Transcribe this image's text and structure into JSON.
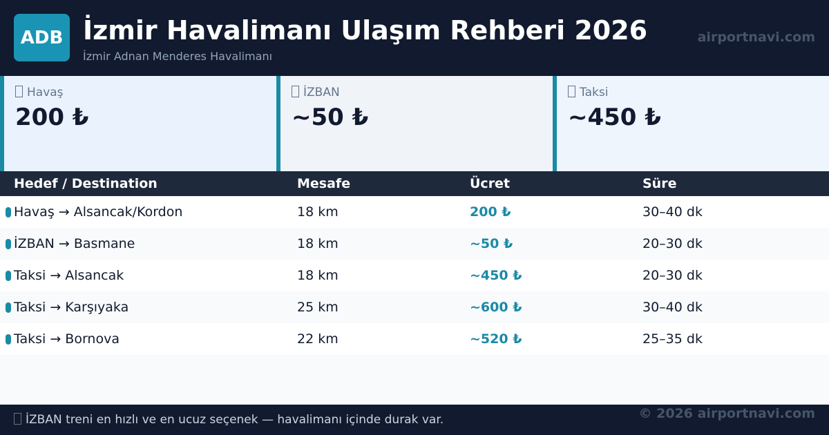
{
  "header": {
    "logo": "ADB",
    "title": "İzmir Havalimanı Ulaşım Rehberi 2026",
    "subtitle": "İzmir Adnan Menderes Havalimanı",
    "site": "airportnavi.com"
  },
  "cards": [
    {
      "label": "Havaş",
      "value": "200 ₺"
    },
    {
      "label": "İZBAN",
      "value": "~50 ₺"
    },
    {
      "label": "Taksi",
      "value": "~450 ₺"
    }
  ],
  "table": {
    "columns": [
      "Hedef / Destination",
      "Mesafe",
      "Ücret",
      "Süre"
    ],
    "rows": [
      [
        "Havaş → Alsancak/Kordon",
        "18 km",
        "200 ₺",
        "30–40 dk"
      ],
      [
        "İZBAN → Basmane",
        "18 km",
        "~50 ₺",
        "20–30 dk"
      ],
      [
        "Taksi → Alsancak",
        "18 km",
        "~450 ₺",
        "20–30 dk"
      ],
      [
        "Taksi → Karşıyaka",
        "25 km",
        "~600 ₺",
        "30–40 dk"
      ],
      [
        "Taksi → Bornova",
        "22 km",
        "~520 ₺",
        "25–35 dk"
      ]
    ]
  },
  "footer": {
    "note": "İZBAN treni en hızlı ve en ucuz seçenek — havalimanı içinde durak var.",
    "copyright": "© 2026 airportnavi.com"
  }
}
